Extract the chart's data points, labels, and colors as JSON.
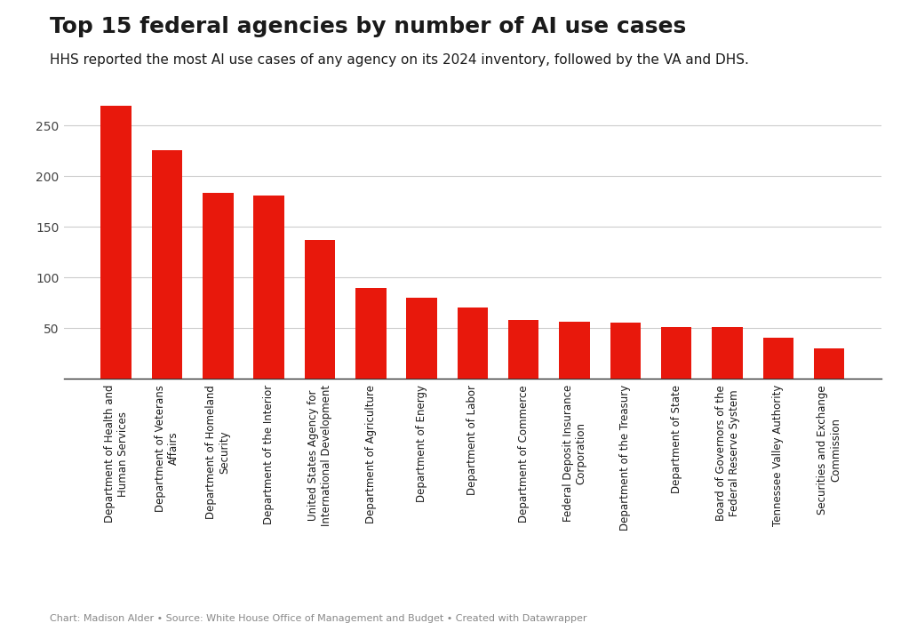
{
  "title": "Top 15 federal agencies by number of AI use cases",
  "subtitle": "HHS reported the most AI use cases of any agency on its 2024 inventory, followed by the VA and DHS.",
  "footer": "Chart: Madison Alder • Source: White House Office of Management and Budget • Created with Datawrapper",
  "categories": [
    "Department of Health and\nHuman Services",
    "Department of Veterans\nAffairs",
    "Department of Homeland\nSecurity",
    "Department of the Interior",
    "United States Agency for\nInternational Development",
    "Department of Agriculture",
    "Department of Energy",
    "Department of Labor",
    "Department of Commerce",
    "Federal Deposit Insurance\nCorporation",
    "Department of the Treasury",
    "Department of State",
    "Board of Governors of the\nFederal Reserve System",
    "Tennessee Valley Authority",
    "Securities and Exchange\nCommission"
  ],
  "values": [
    270,
    226,
    184,
    181,
    137,
    90,
    80,
    70,
    58,
    56,
    55,
    51,
    51,
    40,
    30
  ],
  "bar_color": "#e8180c",
  "background_color": "#ffffff",
  "title_fontsize": 18,
  "subtitle_fontsize": 11,
  "tick_fontsize": 10,
  "label_fontsize": 8.5,
  "footer_fontsize": 8,
  "ylim_max": 290,
  "yticks": [
    50,
    100,
    150,
    200,
    250
  ],
  "grid_color": "#cccccc",
  "spine_color": "#333333",
  "text_color": "#1a1a1a",
  "tick_label_color": "#444444",
  "footer_color": "#888888",
  "bar_width": 0.6
}
